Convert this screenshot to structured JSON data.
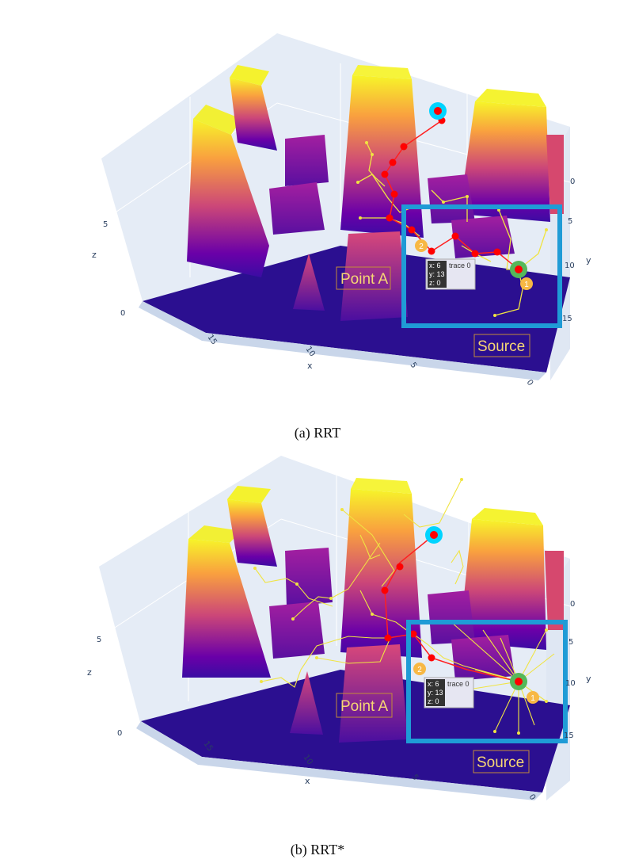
{
  "colors": {
    "scene_bg": "#e5ecf6",
    "floor": "#2b0f90",
    "obstacle_top": "#f7f529",
    "obstacle_mid": "#cc4778",
    "obstacle_base": "#3a0ca3",
    "tree": "#f0e442",
    "path": "#ff0000",
    "goal_ring": "#00d4ff",
    "source_ring": "#55b85a",
    "highlight_box": "#1f9bd6",
    "badge": "#f7b844"
  },
  "panels": [
    {
      "caption": "(a) RRT",
      "annotations": {
        "point_a": "Point A",
        "source": "Source",
        "badge_1": "1",
        "badge_2": "2"
      },
      "hover": {
        "x": "x: 6",
        "y": "y: 13",
        "z": "z: 0",
        "trace": "trace 0"
      },
      "axes": {
        "x_title": "x",
        "x_ticks": [
          "15",
          "10",
          "5",
          "0"
        ],
        "y_title": "y",
        "y_ticks": [
          "0",
          "5",
          "10",
          "15"
        ],
        "z_title": "z",
        "z_ticks": [
          "0",
          "5"
        ]
      }
    },
    {
      "caption": "(b) RRT*",
      "annotations": {
        "point_a": "Point A",
        "source": "Source",
        "badge_1": "1",
        "badge_2": "2"
      },
      "hover": {
        "x": "x: 6",
        "y": "y: 13",
        "z": "z: 0",
        "trace": "trace 0"
      },
      "axes": {
        "x_title": "x",
        "x_ticks": [
          "15",
          "10",
          "5",
          "0"
        ],
        "y_title": "y",
        "y_ticks": [
          "0",
          "5",
          "10",
          "15"
        ],
        "z_title": "z",
        "z_ticks": [
          "0",
          "5"
        ]
      }
    }
  ],
  "chart_data": [
    {
      "type": "scatter",
      "plot": "3d surface with path trace",
      "series": [
        {
          "kind": "surface",
          "colorscale": "plasma"
        },
        {
          "kind": "path",
          "hover_point": {
            "x": 6,
            "y": 13,
            "z": 0
          }
        }
      ],
      "x_range": [
        0,
        18
      ],
      "y_range": [
        0,
        16
      ],
      "z_range": [
        0,
        8
      ]
    },
    {
      "type": "scatter",
      "plot": "3d surface with path trace",
      "series": [
        {
          "kind": "surface",
          "colorscale": "plasma"
        },
        {
          "kind": "path",
          "hover_point": {
            "x": 6,
            "y": 13,
            "z": 0
          }
        }
      ],
      "x_range": [
        0,
        18
      ],
      "y_range": [
        0,
        16
      ],
      "z_range": [
        0,
        8
      ]
    }
  ]
}
